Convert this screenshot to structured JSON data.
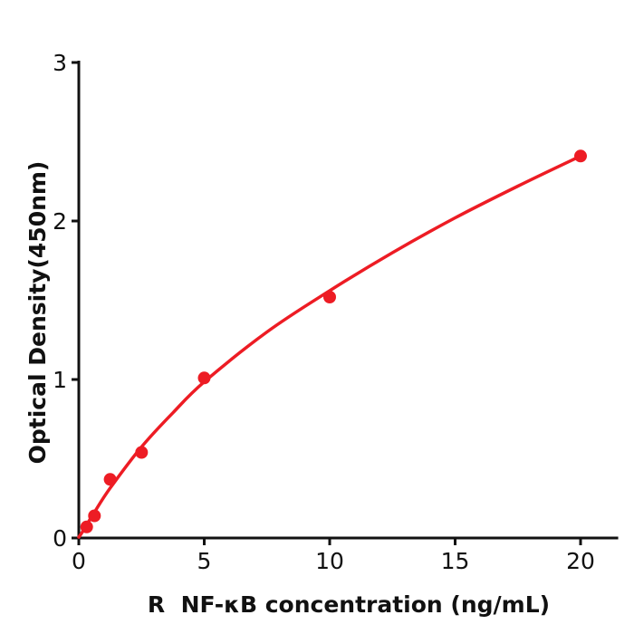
{
  "chart_data": {
    "type": "scatter",
    "title": "",
    "xlabel": "R  NF-κB concentration (ng/mL)",
    "ylabel": "Optical Density(450nm)",
    "xlim": [
      0,
      21.5
    ],
    "ylim": [
      0,
      3
    ],
    "x_ticks": [
      "0",
      "5",
      "10",
      "15",
      "20"
    ],
    "x_tick_values": [
      0,
      5,
      10,
      15,
      20
    ],
    "y_ticks": [
      "0",
      "1",
      "2",
      "3"
    ],
    "y_tick_values": [
      0,
      1,
      2,
      3
    ],
    "grid": false,
    "legend_position": "none",
    "colors": {
      "series": "#ed1c24",
      "axis": "#111111",
      "background": "#ffffff"
    },
    "series": [
      {
        "name": "standard-data-points",
        "kind": "scatter",
        "marker": "circle",
        "marker_radius": 7,
        "points": [
          {
            "x": 0.3125,
            "y": 0.07
          },
          {
            "x": 0.625,
            "y": 0.14
          },
          {
            "x": 1.25,
            "y": 0.37
          },
          {
            "x": 2.5,
            "y": 0.54
          },
          {
            "x": 5,
            "y": 1.01
          },
          {
            "x": 10,
            "y": 1.52
          },
          {
            "x": 20,
            "y": 2.41
          }
        ]
      },
      {
        "name": "4pl-fit-curve",
        "kind": "line",
        "line_width": 3.5,
        "points": [
          [
            0,
            0.005
          ],
          [
            0.15,
            0.04
          ],
          [
            0.3125,
            0.083
          ],
          [
            0.625,
            0.163
          ],
          [
            1.25,
            0.315
          ],
          [
            2.5,
            0.575
          ],
          [
            3.75,
            0.79
          ],
          [
            5,
            0.985
          ],
          [
            7.5,
            1.3
          ],
          [
            10,
            1.56
          ],
          [
            12.5,
            1.8
          ],
          [
            15,
            2.02
          ],
          [
            17.5,
            2.22
          ],
          [
            20,
            2.41
          ]
        ]
      }
    ]
  }
}
